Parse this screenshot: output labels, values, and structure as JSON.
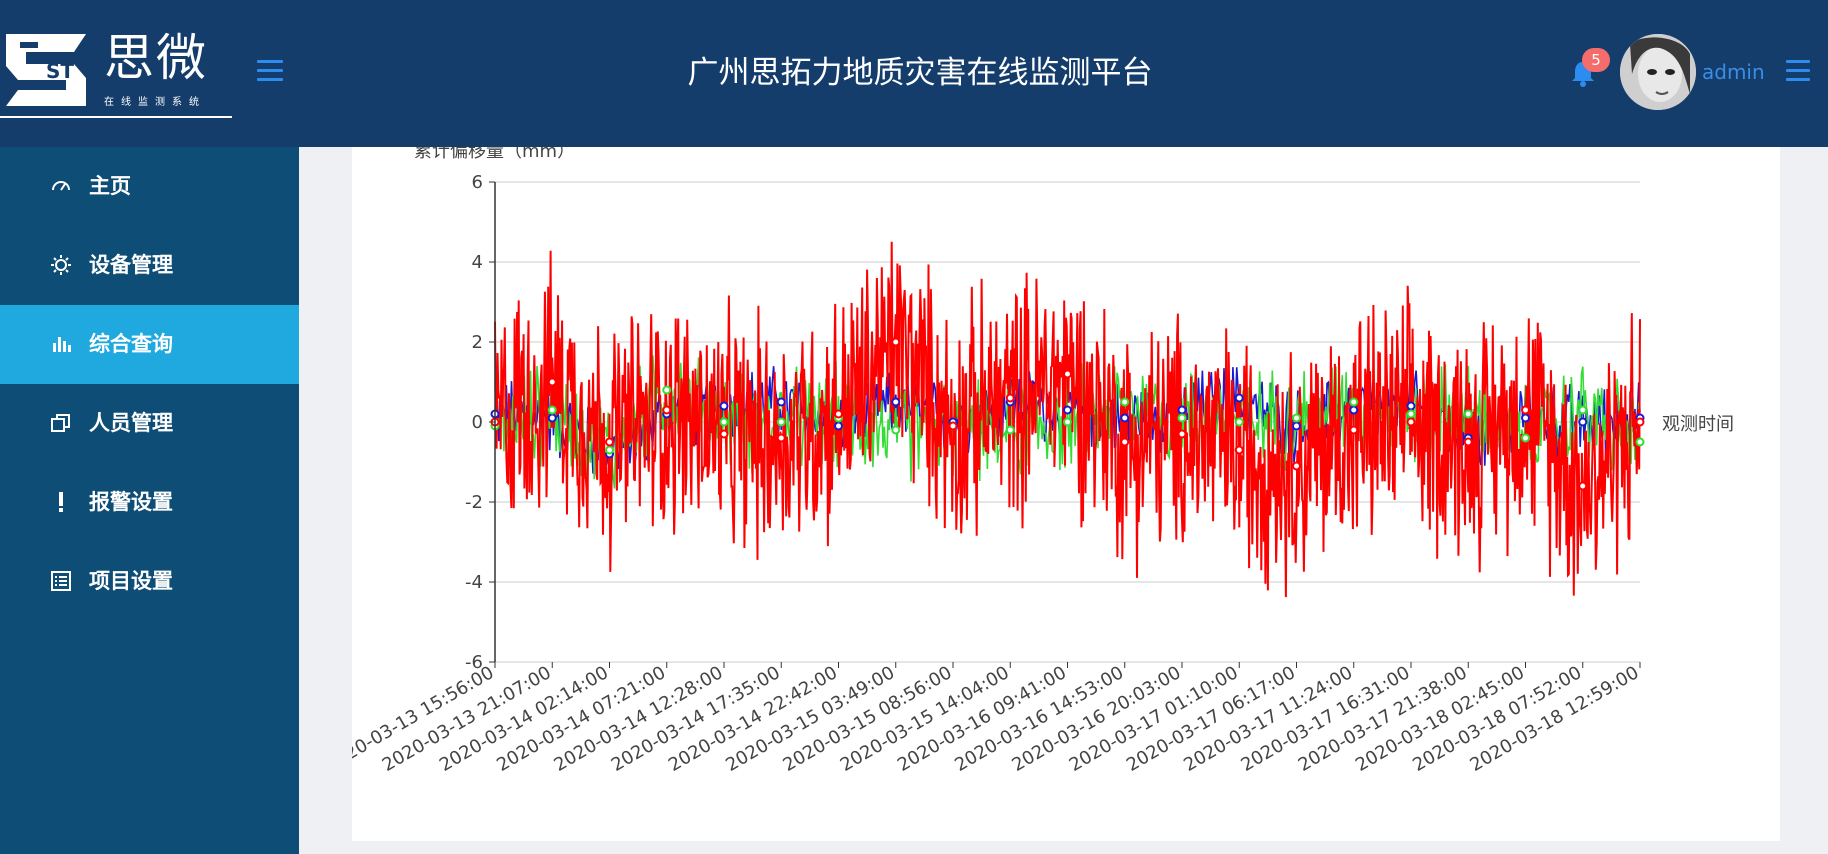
{
  "app": {
    "title": "广州思拓力地质灾害在线监测平台",
    "logo_mark": "ST",
    "logo_text": "思微",
    "logo_subtitle": "在线监测系统"
  },
  "header": {
    "notification_count": "5",
    "username": "admin",
    "icons": [
      "menu-icon",
      "bell-icon",
      "avatar",
      "menu-icon"
    ]
  },
  "sidebar": {
    "items": [
      {
        "label": "主页",
        "icon": "dashboard-icon",
        "active": false
      },
      {
        "label": "设备管理",
        "icon": "gear-icon",
        "active": false
      },
      {
        "label": "综合查询",
        "icon": "bar-chart-icon",
        "active": true
      },
      {
        "label": "人员管理",
        "icon": "copy-icon",
        "active": false
      },
      {
        "label": "报警设置",
        "icon": "exclamation-icon",
        "active": false
      },
      {
        "label": "项目设置",
        "icon": "list-icon",
        "active": false
      }
    ]
  },
  "colors": {
    "header_bg": "#143d6b",
    "sidebar_bg": "#0e4d75",
    "active_item": "#1fa9df",
    "badge": "#f56c6c",
    "series_red": "#ff0000",
    "series_green": "#33dd33",
    "series_blue": "#1a1acc"
  },
  "chart_data": {
    "type": "line",
    "ylabel": "累计偏移量（mm）",
    "xlabel": "观测时间",
    "ylim": [
      -6,
      6
    ],
    "yticks": [
      6,
      4,
      2,
      0,
      -2,
      -4,
      -6
    ],
    "grid": true,
    "x": [
      "2020-03-13 15:56:00",
      "2020-03-13 21:07:00",
      "2020-03-14 02:14:00",
      "2020-03-14 07:21:00",
      "2020-03-14 12:28:00",
      "2020-03-14 17:35:00",
      "2020-03-14 22:42:00",
      "2020-03-15 03:49:00",
      "2020-03-15 08:56:00",
      "2020-03-15 14:04:00",
      "2020-03-16 09:41:00",
      "2020-03-16 14:53:00",
      "2020-03-16 20:03:00",
      "2020-03-17 01:10:00",
      "2020-03-17 06:17:00",
      "2020-03-17 11:24:00",
      "2020-03-17 16:31:00",
      "2020-03-17 21:38:00",
      "2020-03-18 02:45:00",
      "2020-03-18 07:52:00",
      "2020-03-18 12:59:00"
    ],
    "series": [
      {
        "color": "#1a1acc",
        "values": [
          0.2,
          0.1,
          -0.8,
          0.2,
          0.4,
          0.5,
          -0.1,
          0.5,
          0.0,
          0.5,
          0.3,
          0.1,
          0.3,
          0.6,
          -0.1,
          0.3,
          0.4,
          -0.4,
          0.1,
          0.0,
          0.1
        ]
      },
      {
        "color": "#33dd33",
        "values": [
          -0.1,
          0.3,
          -0.7,
          0.8,
          0.0,
          0.0,
          0.1,
          -0.2,
          -0.1,
          -0.2,
          0.0,
          0.5,
          0.1,
          0.0,
          0.1,
          0.5,
          0.2,
          0.2,
          -0.4,
          0.3,
          -0.5
        ]
      },
      {
        "color": "#ff0000",
        "values": [
          0.0,
          1.0,
          -0.5,
          0.3,
          -0.3,
          -0.4,
          0.2,
          2.0,
          -0.1,
          0.6,
          1.2,
          -0.5,
          -0.3,
          -0.7,
          -1.1,
          -0.2,
          0.0,
          -0.5,
          0.3,
          -1.6,
          0.0
        ]
      }
    ]
  }
}
